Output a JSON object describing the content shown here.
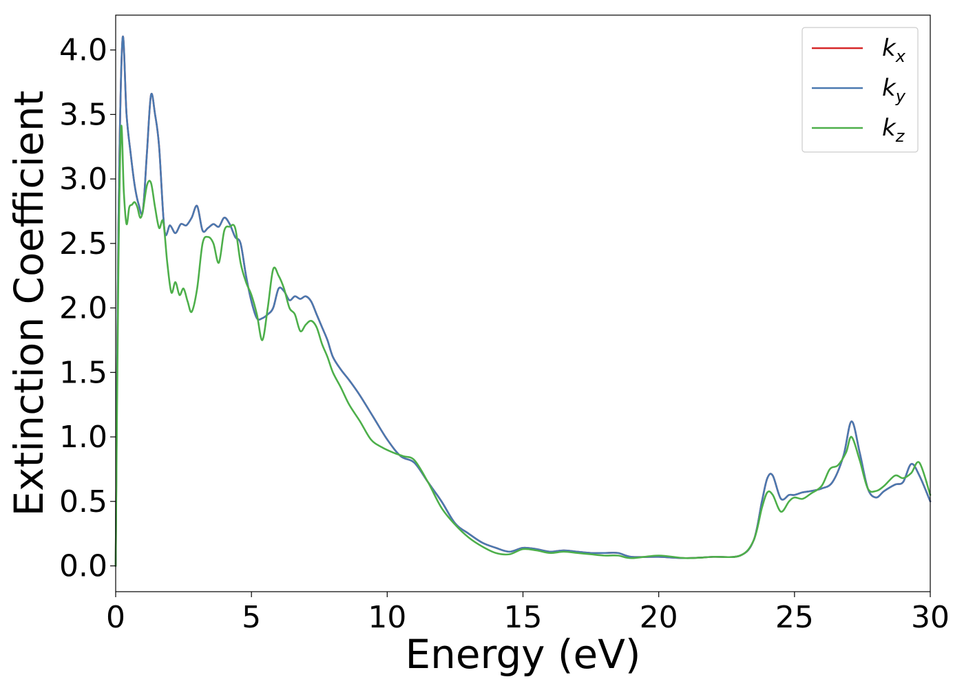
{
  "chart_data": {
    "type": "line",
    "xlabel": "Energy (eV)",
    "ylabel": "Extinction Coefficient",
    "xlim": [
      0,
      30
    ],
    "ylim": [
      -0.2,
      4.27
    ],
    "xticks": [
      0,
      5,
      10,
      15,
      20,
      25,
      30
    ],
    "xtick_labels": [
      "0",
      "5",
      "10",
      "15",
      "20",
      "25",
      "30"
    ],
    "yticks": [
      0.0,
      0.5,
      1.0,
      1.5,
      2.0,
      2.5,
      3.0,
      3.5,
      4.0
    ],
    "ytick_labels": [
      "0.0",
      "0.5",
      "1.0",
      "1.5",
      "2.0",
      "2.5",
      "3.0",
      "3.5",
      "4.0"
    ],
    "grid": false,
    "legend_position": "top-right",
    "series": [
      {
        "name": "k",
        "sub": "x",
        "color": "#d62728",
        "x": [
          0,
          0.1,
          0.25,
          0.4,
          0.55,
          0.7,
          0.85,
          1.0,
          1.15,
          1.3,
          1.45,
          1.6,
          1.8,
          2.0,
          2.2,
          2.4,
          2.6,
          2.8,
          3.0,
          3.2,
          3.4,
          3.6,
          3.8,
          4.0,
          4.2,
          4.4,
          4.6,
          4.8,
          5.0,
          5.2,
          5.4,
          5.6,
          5.8,
          6.0,
          6.2,
          6.4,
          6.6,
          6.8,
          7.0,
          7.2,
          7.4,
          7.6,
          7.8,
          8.0,
          8.3,
          8.6,
          9.0,
          9.5,
          10.0,
          10.5,
          11.0,
          11.5,
          12.0,
          12.5,
          13.0,
          13.5,
          14.0,
          14.5,
          15.0,
          15.5,
          16.0,
          16.5,
          17.0,
          17.5,
          18.0,
          18.5,
          19.0,
          20.0,
          21.0,
          22.0,
          23.0,
          23.5,
          23.8,
          24.0,
          24.2,
          24.5,
          24.8,
          25.0,
          25.3,
          25.6,
          26.0,
          26.4,
          26.8,
          27.1,
          27.4,
          27.7,
          28.0,
          28.3,
          28.7,
          29.0,
          29.3,
          29.6,
          30.0
        ],
        "values": [
          0.0,
          2.6,
          4.08,
          3.5,
          3.2,
          2.95,
          2.8,
          2.75,
          3.2,
          3.65,
          3.5,
          3.25,
          2.6,
          2.64,
          2.58,
          2.65,
          2.64,
          2.7,
          2.79,
          2.6,
          2.62,
          2.65,
          2.63,
          2.7,
          2.65,
          2.55,
          2.5,
          2.25,
          2.05,
          1.92,
          1.92,
          1.95,
          2.0,
          2.15,
          2.13,
          2.06,
          2.09,
          2.07,
          2.09,
          2.05,
          1.95,
          1.85,
          1.75,
          1.62,
          1.52,
          1.44,
          1.32,
          1.15,
          0.98,
          0.85,
          0.8,
          0.65,
          0.5,
          0.33,
          0.25,
          0.18,
          0.14,
          0.11,
          0.14,
          0.13,
          0.11,
          0.12,
          0.11,
          0.1,
          0.1,
          0.1,
          0.07,
          0.07,
          0.06,
          0.07,
          0.08,
          0.2,
          0.5,
          0.68,
          0.7,
          0.52,
          0.55,
          0.55,
          0.57,
          0.58,
          0.6,
          0.65,
          0.85,
          1.12,
          0.88,
          0.6,
          0.53,
          0.58,
          0.63,
          0.65,
          0.79,
          0.7,
          0.5
        ]
      },
      {
        "name": "k",
        "sub": "y",
        "color": "#4a79b0",
        "x": [
          0,
          0.1,
          0.25,
          0.4,
          0.55,
          0.7,
          0.85,
          1.0,
          1.15,
          1.3,
          1.45,
          1.6,
          1.8,
          2.0,
          2.2,
          2.4,
          2.6,
          2.8,
          3.0,
          3.2,
          3.4,
          3.6,
          3.8,
          4.0,
          4.2,
          4.4,
          4.6,
          4.8,
          5.0,
          5.2,
          5.4,
          5.6,
          5.8,
          6.0,
          6.2,
          6.4,
          6.6,
          6.8,
          7.0,
          7.2,
          7.4,
          7.6,
          7.8,
          8.0,
          8.3,
          8.6,
          9.0,
          9.5,
          10.0,
          10.5,
          11.0,
          11.5,
          12.0,
          12.5,
          13.0,
          13.5,
          14.0,
          14.5,
          15.0,
          15.5,
          16.0,
          16.5,
          17.0,
          17.5,
          18.0,
          18.5,
          19.0,
          20.0,
          21.0,
          22.0,
          23.0,
          23.5,
          23.8,
          24.0,
          24.2,
          24.5,
          24.8,
          25.0,
          25.3,
          25.6,
          26.0,
          26.4,
          26.8,
          27.1,
          27.4,
          27.7,
          28.0,
          28.3,
          28.7,
          29.0,
          29.3,
          29.6,
          30.0
        ],
        "values": [
          0.0,
          2.6,
          4.08,
          3.5,
          3.2,
          2.95,
          2.8,
          2.75,
          3.2,
          3.65,
          3.5,
          3.25,
          2.6,
          2.64,
          2.58,
          2.65,
          2.64,
          2.7,
          2.79,
          2.6,
          2.62,
          2.65,
          2.63,
          2.7,
          2.65,
          2.55,
          2.5,
          2.25,
          2.05,
          1.92,
          1.92,
          1.95,
          2.0,
          2.15,
          2.13,
          2.06,
          2.09,
          2.07,
          2.09,
          2.05,
          1.95,
          1.85,
          1.75,
          1.62,
          1.52,
          1.44,
          1.32,
          1.15,
          0.98,
          0.85,
          0.8,
          0.65,
          0.5,
          0.33,
          0.25,
          0.18,
          0.14,
          0.11,
          0.14,
          0.13,
          0.11,
          0.12,
          0.11,
          0.1,
          0.1,
          0.1,
          0.07,
          0.07,
          0.06,
          0.07,
          0.08,
          0.2,
          0.5,
          0.68,
          0.7,
          0.52,
          0.55,
          0.55,
          0.57,
          0.58,
          0.6,
          0.65,
          0.85,
          1.12,
          0.88,
          0.6,
          0.53,
          0.58,
          0.63,
          0.65,
          0.79,
          0.7,
          0.5
        ]
      },
      {
        "name": "k",
        "sub": "z",
        "color": "#4daf4a",
        "x": [
          0,
          0.1,
          0.2,
          0.3,
          0.4,
          0.5,
          0.6,
          0.7,
          0.8,
          0.9,
          1.0,
          1.15,
          1.3,
          1.45,
          1.6,
          1.75,
          1.9,
          2.05,
          2.2,
          2.35,
          2.5,
          2.65,
          2.8,
          3.0,
          3.2,
          3.4,
          3.6,
          3.8,
          4.0,
          4.2,
          4.4,
          4.6,
          4.8,
          5.0,
          5.2,
          5.4,
          5.6,
          5.8,
          6.0,
          6.2,
          6.4,
          6.6,
          6.8,
          7.0,
          7.2,
          7.4,
          7.6,
          7.8,
          8.0,
          8.3,
          8.6,
          9.0,
          9.4,
          9.8,
          10.2,
          10.6,
          11.0,
          11.5,
          12.0,
          12.5,
          13.0,
          13.5,
          14.0,
          14.5,
          15.0,
          15.5,
          16.0,
          16.5,
          17.0,
          17.5,
          18.0,
          18.5,
          19.0,
          20.0,
          21.0,
          22.0,
          23.0,
          23.5,
          23.8,
          24.0,
          24.2,
          24.5,
          24.8,
          25.0,
          25.3,
          25.6,
          26.0,
          26.3,
          26.6,
          26.9,
          27.1,
          27.4,
          27.7,
          28.0,
          28.3,
          28.7,
          29.0,
          29.3,
          29.6,
          30.0
        ],
        "values": [
          0.0,
          2.3,
          3.4,
          2.9,
          2.65,
          2.78,
          2.8,
          2.82,
          2.78,
          2.7,
          2.75,
          2.95,
          2.97,
          2.78,
          2.62,
          2.67,
          2.35,
          2.12,
          2.2,
          2.1,
          2.15,
          2.05,
          1.97,
          2.15,
          2.5,
          2.55,
          2.5,
          2.35,
          2.6,
          2.63,
          2.62,
          2.35,
          2.2,
          2.1,
          1.95,
          1.75,
          2.0,
          2.3,
          2.25,
          2.15,
          2.0,
          1.95,
          1.82,
          1.87,
          1.9,
          1.85,
          1.72,
          1.62,
          1.5,
          1.38,
          1.25,
          1.12,
          0.98,
          0.92,
          0.88,
          0.85,
          0.82,
          0.65,
          0.45,
          0.32,
          0.22,
          0.15,
          0.1,
          0.09,
          0.13,
          0.12,
          0.1,
          0.11,
          0.1,
          0.09,
          0.08,
          0.08,
          0.06,
          0.08,
          0.06,
          0.07,
          0.08,
          0.2,
          0.45,
          0.57,
          0.55,
          0.42,
          0.5,
          0.53,
          0.52,
          0.56,
          0.62,
          0.75,
          0.78,
          0.88,
          1.0,
          0.82,
          0.6,
          0.58,
          0.62,
          0.7,
          0.68,
          0.72,
          0.8,
          0.55
        ]
      }
    ]
  }
}
